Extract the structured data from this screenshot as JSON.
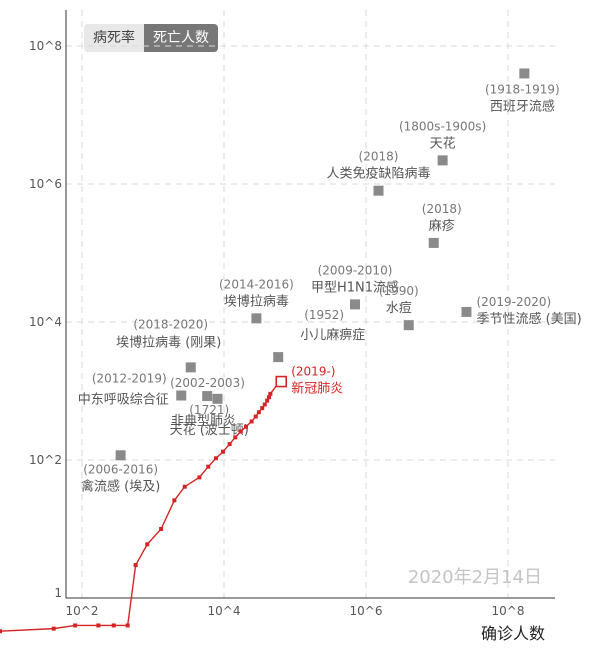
{
  "toggle": {
    "options": [
      "病死率",
      "死亡人数"
    ],
    "active_index": 1
  },
  "date_stamp": "2020年2月14日",
  "chart_data": {
    "type": "scatter",
    "xlabel": "确诊人数",
    "ylabel": "",
    "x_scale": "log",
    "y_scale": "log",
    "xlim": [
      1,
      300000000
    ],
    "ylim": [
      1,
      400000000
    ],
    "x_ticks": [
      {
        "value": 100,
        "label": "10^2"
      },
      {
        "value": 10000,
        "label": "10^4"
      },
      {
        "value": 1000000,
        "label": "10^6"
      },
      {
        "value": 100000000,
        "label": "10^8"
      }
    ],
    "y_ticks": [
      {
        "value": 1,
        "label": "1"
      },
      {
        "value": 100,
        "label": "10^2"
      },
      {
        "value": 10000,
        "label": "10^4"
      },
      {
        "value": 1000000,
        "label": "10^6"
      },
      {
        "value": 100000000,
        "label": "10^8"
      }
    ],
    "grid": true,
    "points": [
      {
        "year": "(1918-1919)",
        "name": "西班牙流感",
        "x": 170000000,
        "y": 40000000
      },
      {
        "year": "(1800s-1900s)",
        "name": "天花",
        "x": 12000000,
        "y": 2200000
      },
      {
        "year": "(2018)",
        "name": "人类免疫缺陷病毒",
        "x": 1500000,
        "y": 800000
      },
      {
        "year": "(2018)",
        "name": "麻疹",
        "x": 9000000,
        "y": 140000
      },
      {
        "year": "(2009-2010)",
        "name": "甲型H1N1流感",
        "x": 700000,
        "y": 18000
      },
      {
        "year": "(1990)",
        "name": "水痘",
        "x": 4000000,
        "y": 9000
      },
      {
        "year": "(2019-2020)",
        "name": "季节性流感 (美国)",
        "x": 26000000,
        "y": 14000
      },
      {
        "year": "(2014-2016)",
        "name": "埃博拉病毒",
        "x": 28600,
        "y": 11300
      },
      {
        "year": "(1952)",
        "name": "小儿麻痹症",
        "x": 58000,
        "y": 3100
      },
      {
        "year": "(2018-2020)",
        "name": "埃博拉病毒 (刚果)",
        "x": 3400,
        "y": 2200
      },
      {
        "year": "(2002-2003)",
        "name": "非典型肺炎",
        "x": 8100,
        "y": 770
      },
      {
        "year": "(2012-2019)",
        "name": "中东呼吸综合征",
        "x": 2500,
        "y": 860
      },
      {
        "year": "(1721)",
        "name": "天花 (波士顿)",
        "x": 5800,
        "y": 844
      },
      {
        "year": "(2006-2016)",
        "name": "禽流感 (埃及)",
        "x": 350,
        "y": 117
      }
    ],
    "covid": {
      "year": "(2019-)",
      "name": "新冠肺炎",
      "color": "#d62424",
      "series": [
        [
          1,
          0.2
        ],
        [
          1,
          0.33
        ],
        [
          1.4,
          0.33
        ],
        [
          3,
          0.33
        ],
        [
          7,
          0.33
        ],
        [
          40,
          0.36
        ],
        [
          80,
          0.4
        ],
        [
          170,
          0.4
        ],
        [
          280,
          0.4
        ],
        [
          440,
          0.4
        ],
        [
          570,
          3
        ],
        [
          830,
          6
        ],
        [
          1300,
          10
        ],
        [
          2000,
          26
        ],
        [
          2800,
          41
        ],
        [
          4500,
          56
        ],
        [
          6000,
          80
        ],
        [
          7700,
          106
        ],
        [
          9700,
          132
        ],
        [
          12000,
          170
        ],
        [
          14400,
          213
        ],
        [
          17200,
          259
        ],
        [
          20400,
          304
        ],
        [
          24500,
          362
        ],
        [
          28000,
          426
        ],
        [
          31000,
          492
        ],
        [
          34500,
          565
        ],
        [
          37500,
          638
        ],
        [
          40500,
          724
        ],
        [
          43000,
          813
        ],
        [
          45000,
          910
        ],
        [
          60000,
          1360
        ],
        [
          64000,
          1370
        ]
      ]
    },
    "colors": {
      "marker": "#8a8a8a",
      "covid": "#d62424",
      "grid": "#d9d9d9"
    }
  }
}
